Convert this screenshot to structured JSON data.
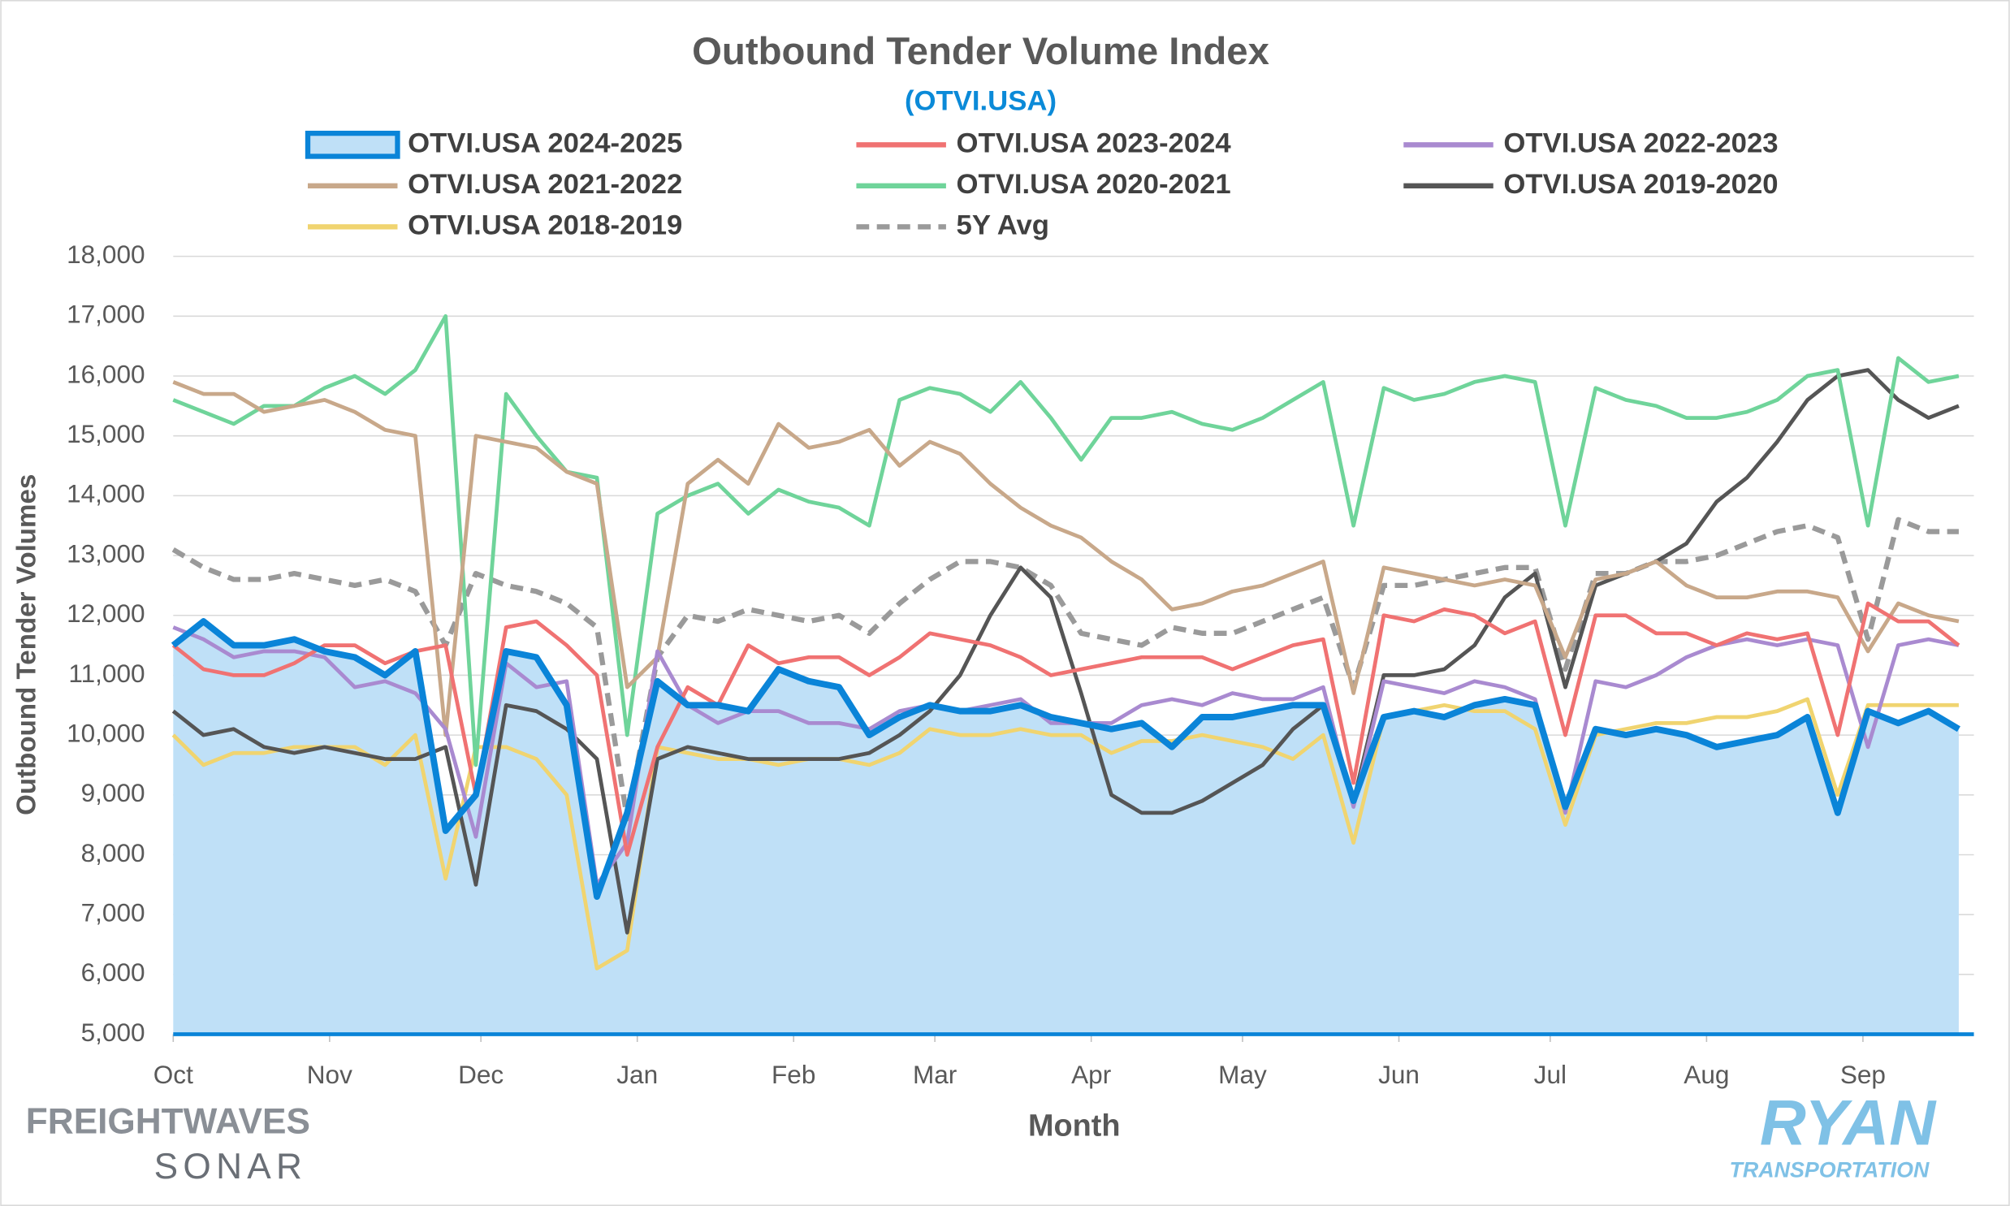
{
  "chart_data": {
    "type": "line",
    "title": "Outbound Tender Volume Index",
    "subtitle": "(OTVI.USA)",
    "x_label": "Month",
    "y_label": "Outbound Tender Volumes",
    "xlim": [
      0,
      357
    ],
    "xticks": [
      {
        "value": 0,
        "label": "Oct"
      },
      {
        "value": 31,
        "label": "Nov"
      },
      {
        "value": 61,
        "label": "Dec"
      },
      {
        "value": 92,
        "label": "Jan"
      },
      {
        "value": 123,
        "label": "Feb"
      },
      {
        "value": 151,
        "label": "Mar"
      },
      {
        "value": 182,
        "label": "Apr"
      },
      {
        "value": 212,
        "label": "May"
      },
      {
        "value": 243,
        "label": "Jun"
      },
      {
        "value": 273,
        "label": "Jul"
      },
      {
        "value": 304,
        "label": "Aug"
      },
      {
        "value": 335,
        "label": "Sep"
      }
    ],
    "ylim": [
      5000,
      18000
    ],
    "yticks": [
      {
        "value": 5000,
        "label": "5,000"
      },
      {
        "value": 6000,
        "label": "6,000"
      },
      {
        "value": 7000,
        "label": "7,000"
      },
      {
        "value": 8000,
        "label": "8,000"
      },
      {
        "value": 9000,
        "label": "9,000"
      },
      {
        "value": 10000,
        "label": "10,000"
      },
      {
        "value": 11000,
        "label": "11,000"
      },
      {
        "value": 12000,
        "label": "12,000"
      },
      {
        "value": 13000,
        "label": "13,000"
      },
      {
        "value": 14000,
        "label": "14,000"
      },
      {
        "value": 15000,
        "label": "15,000"
      },
      {
        "value": 16000,
        "label": "16,000"
      },
      {
        "value": 17000,
        "label": "17,000"
      },
      {
        "value": 18000,
        "label": "18,000"
      }
    ],
    "grid": true,
    "x": [
      0,
      6,
      12,
      18,
      24,
      30,
      36,
      42,
      48,
      54,
      60,
      66,
      72,
      78,
      84,
      90,
      96,
      102,
      108,
      114,
      120,
      126,
      132,
      138,
      144,
      150,
      156,
      162,
      168,
      174,
      180,
      186,
      192,
      198,
      204,
      210,
      216,
      222,
      228,
      234,
      240,
      246,
      252,
      258,
      264,
      270,
      276,
      282,
      288,
      294,
      300,
      306,
      312,
      318,
      324,
      330,
      336,
      342,
      348,
      354
    ],
    "series": [
      {
        "name": "OTVI.USA 2024-2025",
        "color": "#0a84d8",
        "fill": "#bfe0f7",
        "area": true,
        "values": [
          11500,
          11900,
          11500,
          11500,
          11600,
          11400,
          11300,
          11000,
          11400,
          8400,
          9000,
          11400,
          11300,
          10500,
          7300,
          8700,
          10900,
          10500,
          10500,
          10400,
          11100,
          10900,
          10800,
          10000,
          10300,
          10500,
          10400,
          10400,
          10500,
          10300,
          10200,
          10100,
          10200,
          9800,
          10300,
          10300,
          10400,
          10500,
          10500,
          8900,
          10300,
          10400,
          10300,
          10500,
          10600,
          10500,
          8800,
          10100,
          10000,
          10100,
          10000,
          9800,
          9900,
          10000,
          10300,
          8700,
          10400,
          10200,
          10400,
          10100
        ]
      },
      {
        "name": "OTVI.USA 2023-2024",
        "color": "#f07272",
        "values": [
          11500,
          11100,
          11000,
          11000,
          11200,
          11500,
          11500,
          11200,
          11400,
          11500,
          9000,
          11800,
          11900,
          11500,
          11000,
          8000,
          9800,
          10800,
          10500,
          11500,
          11200,
          11300,
          11300,
          11000,
          11300,
          11700,
          11600,
          11500,
          11300,
          11000,
          11100,
          11200,
          11300,
          11300,
          11300,
          11100,
          11300,
          11500,
          11600,
          9200,
          12000,
          11900,
          12100,
          12000,
          11700,
          11900,
          10000,
          12000,
          12000,
          11700,
          11700,
          11500,
          11700,
          11600,
          11700,
          10000,
          12200,
          11900,
          11900,
          11500
        ]
      },
      {
        "name": "OTVI.USA 2022-2023",
        "color": "#a98ad0",
        "values": [
          11800,
          11600,
          11300,
          11400,
          11400,
          11300,
          10800,
          10900,
          10700,
          10100,
          8300,
          11200,
          10800,
          10900,
          7500,
          8200,
          11400,
          10500,
          10200,
          10400,
          10400,
          10200,
          10200,
          10100,
          10400,
          10500,
          10400,
          10500,
          10600,
          10200,
          10200,
          10200,
          10500,
          10600,
          10500,
          10700,
          10600,
          10600,
          10800,
          8800,
          10900,
          10800,
          10700,
          10900,
          10800,
          10600,
          8700,
          10900,
          10800,
          11000,
          11300,
          11500,
          11600,
          11500,
          11600,
          11500,
          9800,
          11500,
          11600,
          11500
        ]
      },
      {
        "name": "OTVI.USA 2021-2022",
        "color": "#c8a88a",
        "values": [
          15900,
          15700,
          15700,
          15400,
          15500,
          15600,
          15400,
          15100,
          15000,
          10000,
          15000,
          14900,
          14800,
          14400,
          14200,
          10800,
          11300,
          14200,
          14600,
          14200,
          15200,
          14800,
          14900,
          15100,
          14500,
          14900,
          14700,
          14200,
          13800,
          13500,
          13300,
          12900,
          12600,
          12100,
          12200,
          12400,
          12500,
          12700,
          12900,
          10700,
          12800,
          12700,
          12600,
          12500,
          12600,
          12500,
          11300,
          12600,
          12700,
          12900,
          12500,
          12300,
          12300,
          12400,
          12400,
          12300,
          11400,
          12200,
          12000,
          11900
        ]
      },
      {
        "name": "OTVI.USA 2020-2021",
        "color": "#6fd49a",
        "values": [
          15600,
          15400,
          15200,
          15500,
          15500,
          15800,
          16000,
          15700,
          16100,
          17000,
          9500,
          15700,
          15000,
          14400,
          14300,
          10000,
          13700,
          14000,
          14200,
          13700,
          14100,
          13900,
          13800,
          13500,
          15600,
          15800,
          15700,
          15400,
          15900,
          15300,
          14600,
          15300,
          15300,
          15400,
          15200,
          15100,
          15300,
          15600,
          15900,
          13500,
          15800,
          15600,
          15700,
          15900,
          16000,
          15900,
          13500,
          15800,
          15600,
          15500,
          15300,
          15300,
          15400,
          15600,
          16000,
          16100,
          13500,
          16300,
          15900,
          16000
        ]
      },
      {
        "name": "OTVI.USA 2019-2020",
        "color": "#555555",
        "values": [
          10400,
          10000,
          10100,
          9800,
          9700,
          9800,
          9700,
          9600,
          9600,
          9800,
          7500,
          10500,
          10400,
          10100,
          9600,
          6700,
          9600,
          9800,
          9700,
          9600,
          9600,
          9600,
          9600,
          9700,
          10000,
          10400,
          11000,
          12000,
          12800,
          12300,
          10700,
          9000,
          8700,
          8700,
          8900,
          9200,
          9500,
          10100,
          10500,
          8900,
          11000,
          11000,
          11100,
          11500,
          12300,
          12700,
          10800,
          12500,
          12700,
          12900,
          13200,
          13900,
          14300,
          14900,
          15600,
          16000,
          16100,
          15600,
          15300,
          15500
        ]
      },
      {
        "name": "OTVI.USA 2018-2019",
        "color": "#f0d470",
        "values": [
          10000,
          9500,
          9700,
          9700,
          9800,
          9800,
          9800,
          9500,
          10000,
          7600,
          9800,
          9800,
          9600,
          9000,
          6100,
          6400,
          9800,
          9700,
          9600,
          9600,
          9500,
          9600,
          9600,
          9500,
          9700,
          10100,
          10000,
          10000,
          10100,
          10000,
          10000,
          9700,
          9900,
          9900,
          10000,
          9900,
          9800,
          9600,
          10000,
          8200,
          10300,
          10400,
          10500,
          10400,
          10400,
          10100,
          8500,
          10000,
          10100,
          10200,
          10200,
          10300,
          10300,
          10400,
          10600,
          9000,
          10500,
          10500,
          10500,
          10500
        ]
      },
      {
        "name": "5Y Avg",
        "color": "#9a9a9a",
        "dashed": true,
        "values": [
          13100,
          12800,
          12600,
          12600,
          12700,
          12600,
          12500,
          12600,
          12400,
          11500,
          12700,
          12500,
          12400,
          12200,
          11800,
          8600,
          11300,
          12000,
          11900,
          12100,
          12000,
          11900,
          12000,
          11700,
          12200,
          12600,
          12900,
          12900,
          12800,
          12500,
          11700,
          11600,
          11500,
          11800,
          11700,
          11700,
          11900,
          12100,
          12300,
          10800,
          12500,
          12500,
          12600,
          12700,
          12800,
          12800,
          11100,
          12700,
          12700,
          12900,
          12900,
          13000,
          13200,
          13400,
          13500,
          13300,
          11600,
          13600,
          13400,
          13400
        ]
      }
    ],
    "logos": [
      "FREIGHTWAVES",
      "SONAR",
      "RYAN",
      "TRANSPORTATION"
    ]
  }
}
